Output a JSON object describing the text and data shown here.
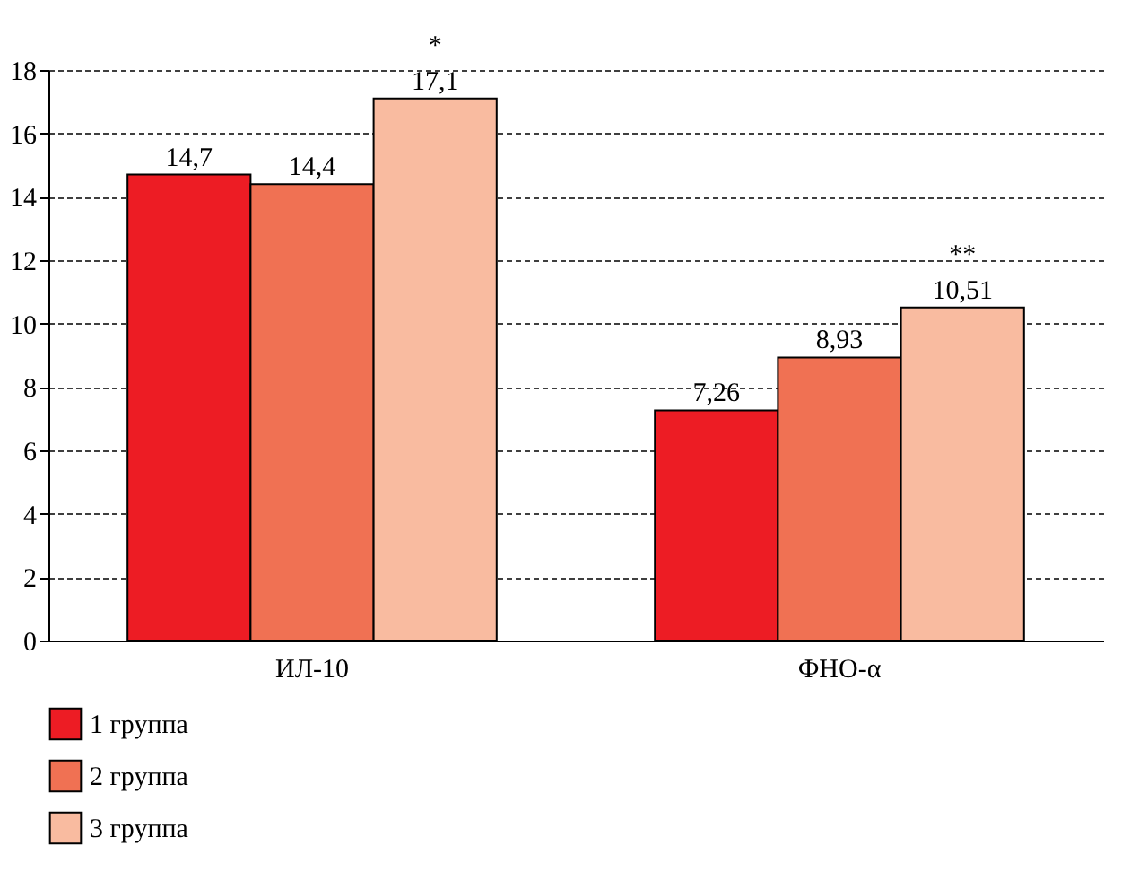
{
  "chart_data": {
    "type": "bar",
    "categories": [
      "ИЛ-10",
      "ФНО-α"
    ],
    "series": [
      {
        "name": "1 группа",
        "color": "#ed1c24",
        "values": [
          14.7,
          7.26
        ],
        "value_labels": [
          "14,7",
          "7,26"
        ]
      },
      {
        "name": "2 группа",
        "color": "#f07153",
        "values": [
          14.4,
          8.93
        ],
        "value_labels": [
          "14,4",
          "8,93"
        ]
      },
      {
        "name": "3 группа",
        "color": "#f9bba0",
        "values": [
          17.1,
          10.51
        ],
        "value_labels": [
          "17,1",
          "10,51"
        ]
      }
    ],
    "ylim": [
      0,
      18
    ],
    "yticks": [
      0,
      2,
      4,
      6,
      8,
      10,
      12,
      14,
      16,
      18
    ],
    "grid": "y",
    "legend": "bottom left",
    "annotations": [
      "*",
      "**"
    ]
  }
}
